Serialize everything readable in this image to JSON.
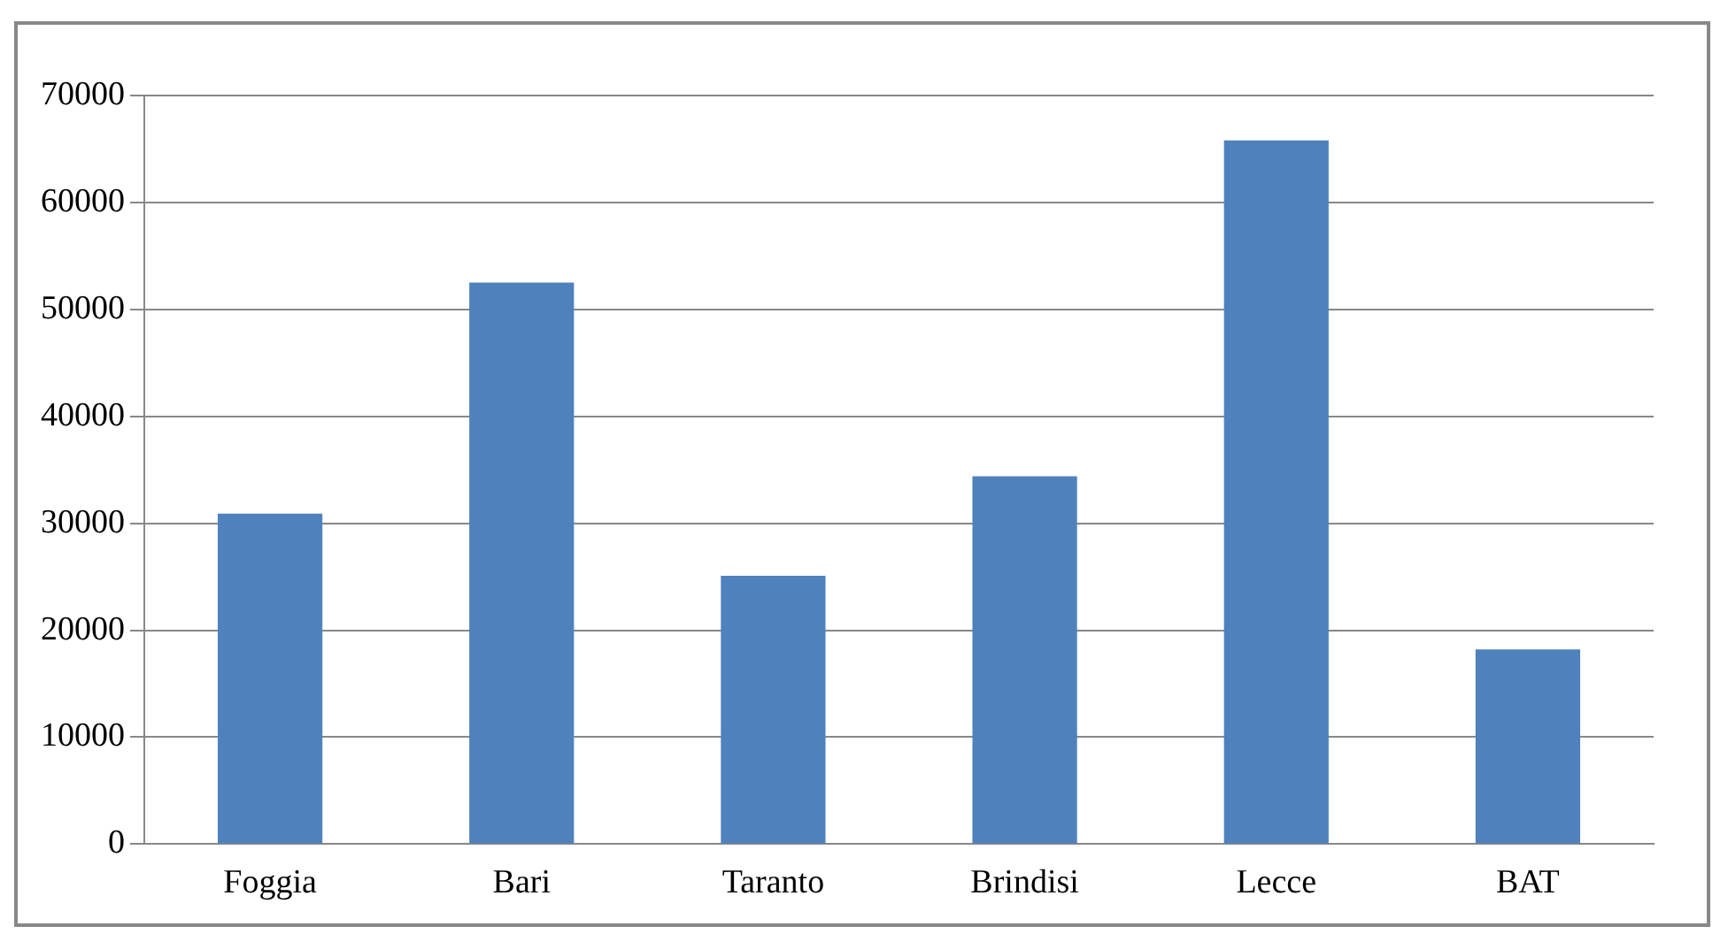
{
  "chart_data": {
    "type": "bar",
    "categories": [
      "Foggia",
      "Bari",
      "Taranto",
      "Brindisi",
      "Lecce",
      "BAT"
    ],
    "values": [
      30900,
      52500,
      25100,
      34400,
      65800,
      18200
    ],
    "color": "#4f81bd",
    "ylim": [
      0,
      70000
    ],
    "yticks": [
      0,
      10000,
      20000,
      30000,
      40000,
      50000,
      60000,
      70000
    ],
    "grid": "y",
    "legend": false
  }
}
